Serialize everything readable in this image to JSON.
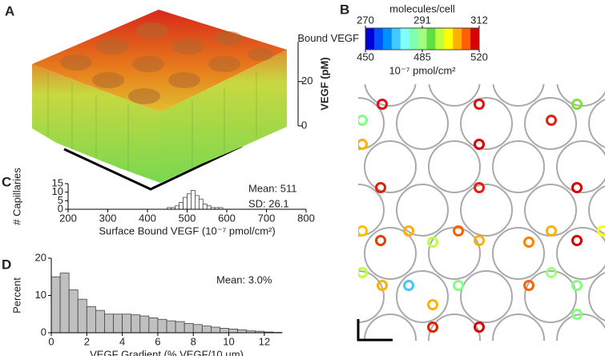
{
  "chart_data": [
    {
      "type": "surface",
      "panel_label": "A",
      "z_label": "VEGF (pM)",
      "zlim": [
        0,
        38
      ],
      "zticks": [
        0,
        20
      ]
    },
    {
      "type": "colorbar",
      "panel_label": "B",
      "title": "Bound VEGF",
      "top_label": "molecules/cell",
      "bottom_label": "10⁻⁷ pmol/cm²",
      "lim": [
        270,
        312
      ],
      "ticks": [
        270,
        291,
        312
      ],
      "lim2": [
        450,
        520
      ],
      "ticks2": [
        450,
        485,
        520
      ],
      "colors": [
        "#0000d8",
        "#0050ff",
        "#0090ff",
        "#40c8ff",
        "#80ffff",
        "#80ffb0",
        "#a0ff80",
        "#60e040",
        "#c0ff40",
        "#ffff00",
        "#ffb000",
        "#ff6000",
        "#d80000"
      ]
    },
    {
      "type": "histogram",
      "panel_label": "C",
      "x_label": "Surface Bound VEGF (10⁻⁷ pmol/cm²)",
      "y_label": "# Capillaries",
      "bins": [
        450,
        460,
        470,
        480,
        490,
        500,
        510,
        520,
        530,
        540,
        550,
        560,
        570,
        580,
        590
      ],
      "values": [
        1,
        1,
        2,
        4,
        7,
        9,
        11,
        8,
        6,
        3,
        2,
        1,
        1,
        1
      ],
      "color": "#ffffff",
      "xlim": [
        200,
        800
      ],
      "xticks": [
        200,
        300,
        400,
        500,
        600,
        700,
        800
      ],
      "ylim": [
        0,
        15
      ],
      "yticks": [
        0,
        5,
        10,
        15
      ],
      "annotations": [
        "Mean: 511",
        "SD: 26.1"
      ]
    },
    {
      "type": "histogram",
      "panel_label": "D",
      "x_label": "VEGF Gradient (% VEGF/10 μm)",
      "y_label": "Percent",
      "bins": [
        0,
        0.5,
        1,
        1.5,
        2,
        2.5,
        3,
        3.5,
        4,
        4.5,
        5,
        5.5,
        6,
        6.5,
        7,
        7.5,
        8,
        8.5,
        9,
        9.5,
        10,
        10.5,
        11,
        11.5,
        12,
        12.5,
        13
      ],
      "values": [
        15,
        16,
        11.5,
        9,
        7,
        6,
        5,
        5,
        5,
        4.8,
        4.5,
        4,
        3.6,
        3.2,
        3,
        2.5,
        2.2,
        1.8,
        1.5,
        1.2,
        1,
        0.8,
        0.5,
        0.4,
        0.2,
        0.1
      ],
      "color": "#c0c0c0",
      "xlim": [
        0,
        13
      ],
      "xticks": [
        0,
        2,
        4,
        6,
        8,
        10,
        12
      ],
      "ylim": [
        0,
        20
      ],
      "yticks": [
        0,
        10,
        20
      ],
      "annotations": [
        "Mean: 3.0%"
      ]
    }
  ]
}
